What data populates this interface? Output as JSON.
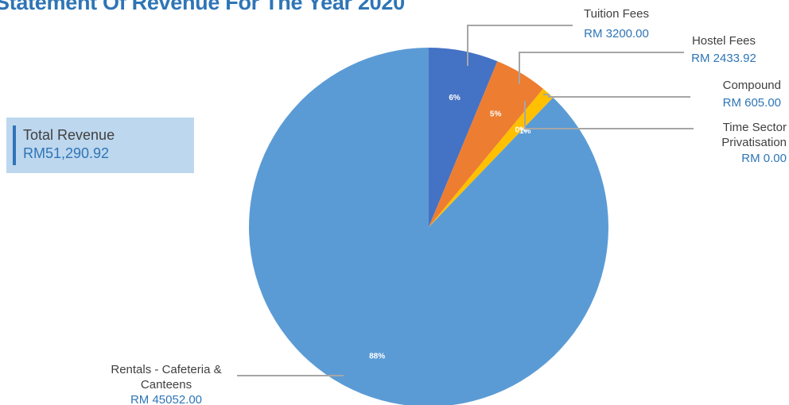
{
  "page": {
    "title": "Statement Of Revenue For The Year 2020",
    "total_revenue": {
      "label": "Total Revenue",
      "value": "RM51,290.92"
    }
  },
  "chart_data": {
    "type": "pie",
    "title": "Statement Of Revenue For The Year 2020",
    "slices": [
      {
        "label": "Tuition Fees",
        "value_text": "RM 3200.00",
        "value": 3200.0,
        "percent_label": "6%",
        "color": "#4472c4"
      },
      {
        "label": "Hostel Fees",
        "value_text": "RM 2433.92",
        "value": 2433.92,
        "percent_label": "5%",
        "color": "#ed7d31"
      },
      {
        "label": "Compound",
        "value_text": "RM 605.00",
        "value": 605.0,
        "percent_label": "1%",
        "color": "#ffc000"
      },
      {
        "label": "Time Sector Privatisation",
        "value_text": "RM 0.00",
        "value": 0.0,
        "percent_label": "0%",
        "color": "#a5a5a5"
      },
      {
        "label": "Rentals - Cafeteria & Canteens",
        "value_text": "RM 45052.00",
        "value": 45052.0,
        "percent_label": "88%",
        "color": "#5b9bd5"
      }
    ]
  }
}
